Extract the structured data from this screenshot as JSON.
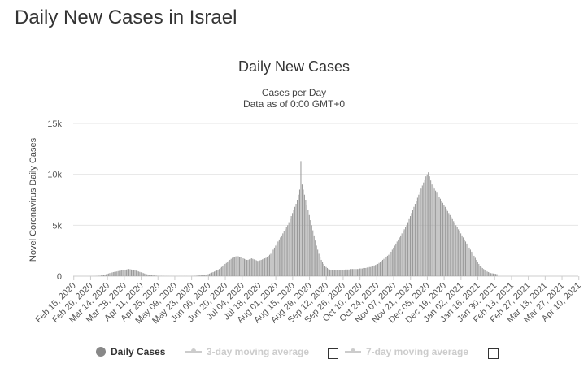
{
  "page": {
    "title": "Daily New Cases in Israel"
  },
  "chart_data": {
    "type": "bar",
    "title": "Daily New Cases",
    "subtitle_lines": [
      "Cases per Day",
      "Data as of 0:00 GMT+0"
    ],
    "ylabel": "Novel Coronavirus Daily Cases",
    "xlabel": "",
    "ylim": [
      0,
      15000
    ],
    "yticks": [
      {
        "value": 0,
        "label": "0"
      },
      {
        "value": 5000,
        "label": "5k"
      },
      {
        "value": 10000,
        "label": "10k"
      },
      {
        "value": 15000,
        "label": "15k"
      }
    ],
    "grid": true,
    "start_date": "Feb 15, 2020",
    "xtick_labels": [
      "Feb 15, 2020",
      "Feb 29, 2020",
      "Mar 14, 2020",
      "Mar 28, 2020",
      "Apr 11, 2020",
      "Apr 25, 2020",
      "May 09, 2020",
      "May 23, 2020",
      "Jun 06, 2020",
      "Jun 20, 2020",
      "Jul 04, 2020",
      "Jul 18, 2020",
      "Aug 01, 2020",
      "Aug 15, 2020",
      "Aug 29, 2020",
      "Sep 12, 2020",
      "Sep 26, 2020",
      "Oct 10, 2020",
      "Oct 24, 2020",
      "Nov 07, 2020",
      "Nov 21, 2020",
      "Dec 05, 2020",
      "Dec 19, 2020",
      "Jan 02, 2021",
      "Jan 16, 2021",
      "Jan 30, 2021",
      "Feb 13, 2021",
      "Feb 27, 2021",
      "Mar 13, 2021",
      "Mar 27, 2021",
      "Apr 10, 2021"
    ],
    "series": [
      {
        "name": "Daily Cases",
        "color": "#999999",
        "values": [
          0,
          0,
          0,
          0,
          0,
          0,
          0,
          0,
          0,
          0,
          0,
          0,
          0,
          0,
          1,
          1,
          2,
          4,
          8,
          12,
          20,
          30,
          45,
          60,
          80,
          110,
          150,
          190,
          230,
          260,
          300,
          330,
          360,
          400,
          420,
          440,
          460,
          500,
          520,
          540,
          560,
          580,
          600,
          620,
          650,
          680,
          700,
          680,
          650,
          620,
          600,
          580,
          540,
          500,
          460,
          420,
          380,
          340,
          300,
          260,
          220,
          190,
          160,
          130,
          110,
          90,
          70,
          60,
          50,
          40,
          30,
          25,
          20,
          18,
          15,
          12,
          10,
          10,
          8,
          8,
          6,
          6,
          5,
          5,
          5,
          5,
          5,
          5,
          5,
          5,
          5,
          5,
          5,
          5,
          5,
          5,
          5,
          5,
          10,
          15,
          20,
          30,
          40,
          50,
          60,
          70,
          80,
          100,
          120,
          140,
          160,
          180,
          200,
          250,
          300,
          350,
          400,
          450,
          500,
          550,
          600,
          700,
          800,
          900,
          1000,
          1100,
          1200,
          1300,
          1400,
          1500,
          1600,
          1700,
          1800,
          1850,
          1900,
          1950,
          2000,
          1950,
          1900,
          1850,
          1800,
          1750,
          1700,
          1650,
          1600,
          1600,
          1650,
          1700,
          1750,
          1700,
          1650,
          1600,
          1550,
          1500,
          1500,
          1550,
          1600,
          1650,
          1700,
          1750,
          1800,
          1900,
          2000,
          2100,
          2200,
          2400,
          2600,
          2800,
          3000,
          3200,
          3400,
          3600,
          3800,
          4000,
          4200,
          4400,
          4600,
          4800,
          5000,
          5300,
          5600,
          5900,
          6200,
          6500,
          6800,
          7100,
          7500,
          8000,
          8500,
          11300,
          9000,
          8500,
          8000,
          7500,
          7000,
          6500,
          6000,
          5500,
          5000,
          4500,
          4000,
          3500,
          3000,
          2600,
          2200,
          1900,
          1600,
          1400,
          1200,
          1000,
          900,
          800,
          700,
          650,
          600,
          600,
          600,
          600,
          600,
          600,
          600,
          600,
          600,
          600,
          600,
          600,
          650,
          650,
          650,
          650,
          700,
          700,
          700,
          700,
          700,
          700,
          700,
          700,
          750,
          750,
          750,
          800,
          800,
          800,
          850,
          850,
          900,
          900,
          950,
          1000,
          1050,
          1100,
          1150,
          1200,
          1300,
          1400,
          1500,
          1600,
          1700,
          1800,
          1900,
          2000,
          2100,
          2200,
          2400,
          2600,
          2800,
          3000,
          3200,
          3400,
          3600,
          3800,
          4000,
          4200,
          4400,
          4600,
          4800,
          5000,
          5300,
          5600,
          5900,
          6200,
          6500,
          6800,
          7100,
          7400,
          7700,
          8000,
          8300,
          8600,
          8900,
          9200,
          9500,
          9800,
          10000,
          10200,
          9800,
          9400,
          9000,
          8800,
          8600,
          8400,
          8200,
          8000,
          7800,
          7600,
          7400,
          7200,
          7000,
          6800,
          6600,
          6400,
          6200,
          6000,
          5800,
          5600,
          5400,
          5200,
          5000,
          4800,
          4600,
          4400,
          4200,
          4000,
          3800,
          3600,
          3400,
          3200,
          3000,
          2800,
          2600,
          2400,
          2200,
          2000,
          1800,
          1600,
          1400,
          1200,
          1000,
          900,
          800,
          700,
          600,
          500,
          450,
          400,
          350,
          300,
          280,
          260,
          240,
          220,
          200
        ]
      }
    ],
    "legend": [
      {
        "label": "Daily Cases",
        "active": true
      },
      {
        "label": "3-day moving average",
        "active": false
      },
      {
        "label": "7-day moving average",
        "active": false
      }
    ],
    "legend_position": "bottom"
  }
}
